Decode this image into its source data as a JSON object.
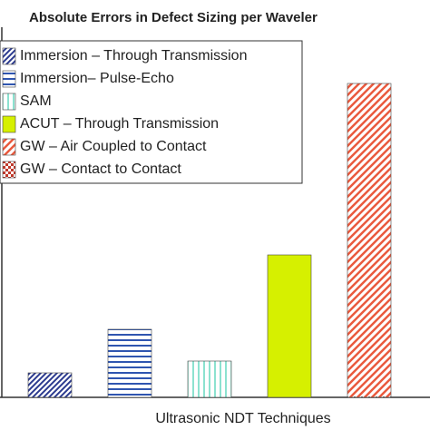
{
  "chart_data": {
    "type": "bar",
    "title": "Absolute Errors in Defect Sizing per Waveler",
    "x_label": "Ultrasonic NDT Techniques",
    "ylim": [
      0,
      4
    ],
    "series": [
      {
        "name": "Immersion – Through Transmission",
        "color": "#2b3a8f",
        "hatch": "diagonal",
        "values": [
          0.27
        ]
      },
      {
        "name": "Immersion– Pulse-Echo",
        "color": "#2f55b0",
        "hatch": "horizontal",
        "values": [
          0.75
        ]
      },
      {
        "name": "SAM",
        "color": "#3fcfb0",
        "hatch": "vertical",
        "values": [
          0.4
        ]
      },
      {
        "name": "ACUT – Through Transmission",
        "color": "#d6f000",
        "hatch": "solid",
        "values": [
          1.57
        ]
      },
      {
        "name": "GW – Air Coupled to Contact",
        "color": "#ea5a3e",
        "hatch": "diagonal-wide",
        "values": [
          3.46
        ]
      },
      {
        "name": "GW – Contact to Contact",
        "color": "#c0392b",
        "hatch": "check",
        "values": [
          null
        ]
      }
    ]
  }
}
